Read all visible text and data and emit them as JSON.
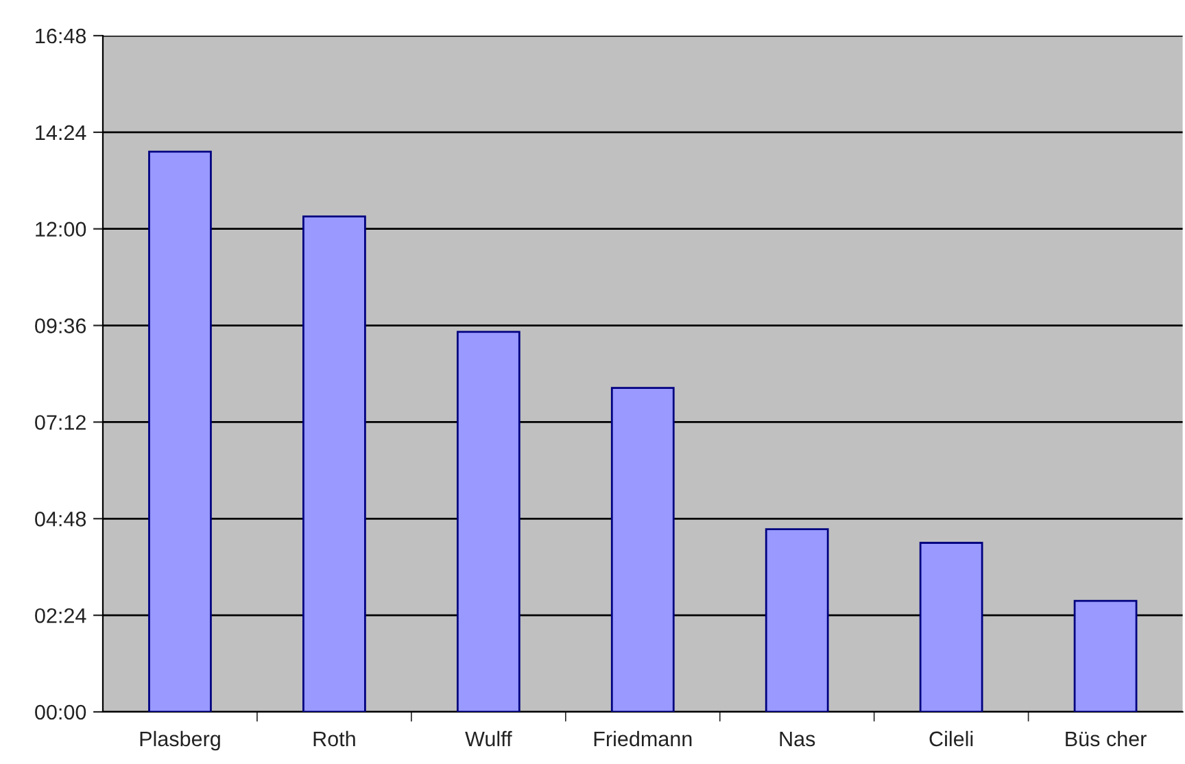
{
  "chart_data": {
    "type": "bar",
    "categories": [
      "Plasberg",
      "Roth",
      "Wulff",
      "Friedmann",
      "Nas",
      "Cileli",
      "Büs cher"
    ],
    "values": [
      13.92,
      12.31,
      9.44,
      8.05,
      4.54,
      4.2,
      2.76
    ],
    "color": "#9999ff",
    "ylim": [
      0,
      16.8
    ],
    "yticks": [
      {
        "value": 0,
        "label": "00:00"
      },
      {
        "value": 2.4,
        "label": "02:24"
      },
      {
        "value": 4.8,
        "label": "04:48"
      },
      {
        "value": 7.2,
        "label": "07:12"
      },
      {
        "value": 9.6,
        "label": "09:36"
      },
      {
        "value": 12,
        "label": "12:00"
      },
      {
        "value": 14.4,
        "label": "14:24"
      },
      {
        "value": 16.8,
        "label": "16:48"
      }
    ],
    "grid": "y",
    "legend": false
  }
}
